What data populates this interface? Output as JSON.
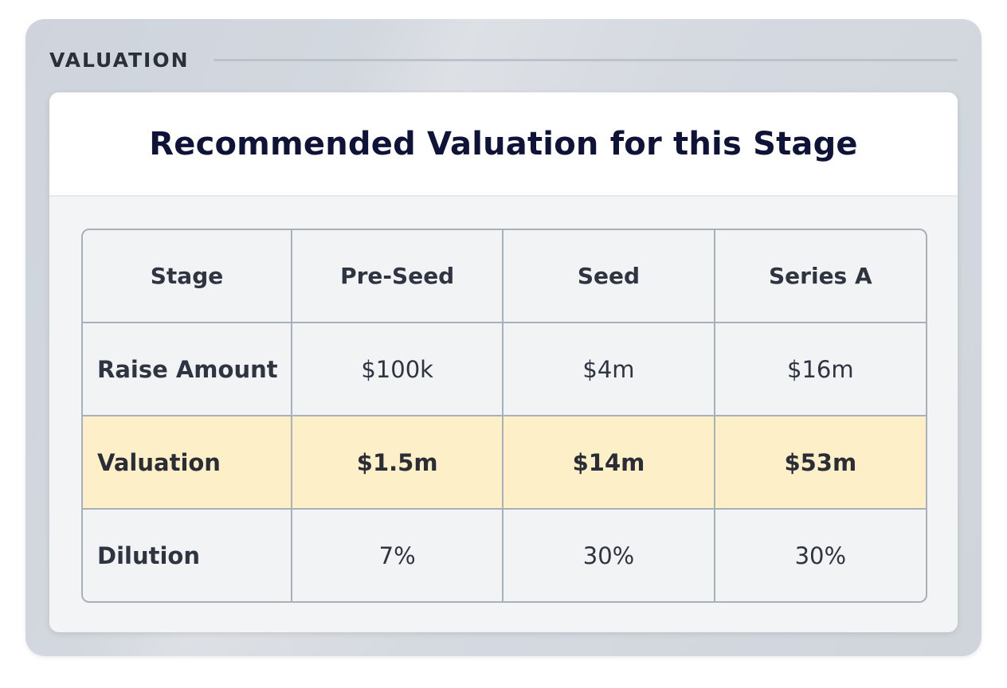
{
  "section": {
    "label": "VALUATION"
  },
  "card": {
    "title": "Recommended Valuation for this Stage"
  },
  "table": {
    "columns": [
      "Stage",
      "Pre-Seed",
      "Seed",
      "Series A"
    ],
    "rows": [
      {
        "label": "Raise Amount",
        "values": [
          "$100k",
          "$4m",
          "$16m"
        ]
      },
      {
        "label": "Valuation",
        "values": [
          "$1.5m",
          "$14m",
          "$53m"
        ]
      },
      {
        "label": "Dilution",
        "values": [
          "7%",
          "30%",
          "30%"
        ]
      }
    ]
  },
  "colors": {
    "highlight_row": "#fdefc8",
    "title_text": "#0f1338",
    "border": "#a9b0ba"
  }
}
